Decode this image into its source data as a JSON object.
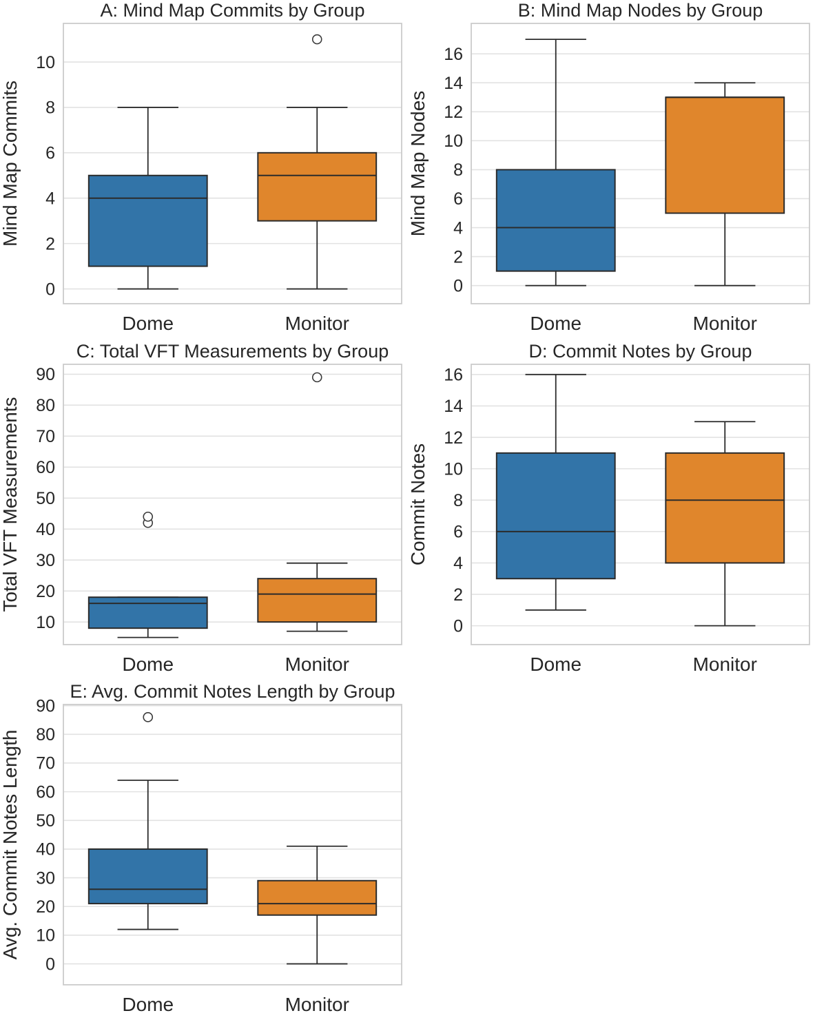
{
  "figure": {
    "background": "#ffffff",
    "text_color": "#262626",
    "grid_color": "#e2e2e2",
    "spine_color": "#cbcbcb",
    "box_edge_color": "#2b2b2b",
    "box_colors": {
      "Dome": "#3274A8",
      "Monitor": "#E0862C"
    },
    "outlier_marker": "hollow-circle"
  },
  "chart_data": [
    {
      "type": "box",
      "panel": "A",
      "title": "A: Mind Map Commits by Group",
      "ylabel": "Mind Map Commits",
      "xlabel": "",
      "categories": [
        "Dome",
        "Monitor"
      ],
      "yticks": [
        0,
        2,
        4,
        6,
        8,
        10
      ],
      "ylim": [
        -0.65,
        11.7
      ],
      "grid": true,
      "series": [
        {
          "category": "Dome",
          "whisker_low": 0,
          "q1": 1,
          "median": 4,
          "q3": 5,
          "whisker_high": 8,
          "outliers": []
        },
        {
          "category": "Monitor",
          "whisker_low": 0,
          "q1": 3,
          "median": 5,
          "q3": 6,
          "whisker_high": 8,
          "outliers": [
            11
          ]
        }
      ]
    },
    {
      "type": "box",
      "panel": "B",
      "title": "B: Mind Map Nodes by Group",
      "ylabel": "Mind Map Nodes",
      "xlabel": "",
      "categories": [
        "Dome",
        "Monitor"
      ],
      "yticks": [
        0,
        2,
        4,
        6,
        8,
        10,
        12,
        14,
        16
      ],
      "ylim": [
        -1.25,
        18.1
      ],
      "grid": true,
      "series": [
        {
          "category": "Dome",
          "whisker_low": 0,
          "q1": 1,
          "median": 4,
          "q3": 8,
          "whisker_high": 17,
          "outliers": []
        },
        {
          "category": "Monitor",
          "whisker_low": 0,
          "q1": 5,
          "median": 13,
          "q3": 13,
          "whisker_high": 14,
          "outliers": []
        }
      ]
    },
    {
      "type": "box",
      "panel": "C",
      "title": "C: Total VFT Measurements by Group",
      "ylabel": "Total VFT Measurements",
      "xlabel": "",
      "categories": [
        "Dome",
        "Monitor"
      ],
      "yticks": [
        10,
        20,
        30,
        40,
        50,
        60,
        70,
        80,
        90
      ],
      "ylim": [
        2.7,
        93.2
      ],
      "grid": true,
      "series": [
        {
          "category": "Dome",
          "whisker_low": 5,
          "q1": 8,
          "median": 16,
          "q3": 18,
          "whisker_high": 18,
          "outliers": [
            42,
            44
          ]
        },
        {
          "category": "Monitor",
          "whisker_low": 7,
          "q1": 10,
          "median": 19,
          "q3": 24,
          "whisker_high": 29,
          "outliers": [
            89
          ]
        }
      ]
    },
    {
      "type": "box",
      "panel": "D",
      "title": "D: Commit Notes by Group",
      "ylabel": "Commit Notes",
      "xlabel": "",
      "categories": [
        "Dome",
        "Monitor"
      ],
      "yticks": [
        0,
        2,
        4,
        6,
        8,
        10,
        12,
        14,
        16
      ],
      "ylim": [
        -1.2,
        16.65
      ],
      "grid": true,
      "series": [
        {
          "category": "Dome",
          "whisker_low": 1,
          "q1": 3,
          "median": 6,
          "q3": 11,
          "whisker_high": 16,
          "outliers": []
        },
        {
          "category": "Monitor",
          "whisker_low": 0,
          "q1": 4,
          "median": 8,
          "q3": 11,
          "whisker_high": 13,
          "outliers": []
        }
      ]
    },
    {
      "type": "box",
      "panel": "E",
      "title": "E: Avg. Commit Notes Length by Group",
      "ylabel": "Avg. Commit Notes Length",
      "xlabel": "",
      "categories": [
        "Dome",
        "Monitor"
      ],
      "yticks": [
        0,
        10,
        20,
        30,
        40,
        50,
        60,
        70,
        80,
        90
      ],
      "ylim": [
        -7.3,
        90.4
      ],
      "grid": true,
      "series": [
        {
          "category": "Dome",
          "whisker_low": 12,
          "q1": 21,
          "median": 26,
          "q3": 40,
          "whisker_high": 64,
          "outliers": [
            86
          ]
        },
        {
          "category": "Monitor",
          "whisker_low": 0,
          "q1": 17,
          "median": 21,
          "q3": 29,
          "whisker_high": 41,
          "outliers": []
        }
      ]
    }
  ]
}
